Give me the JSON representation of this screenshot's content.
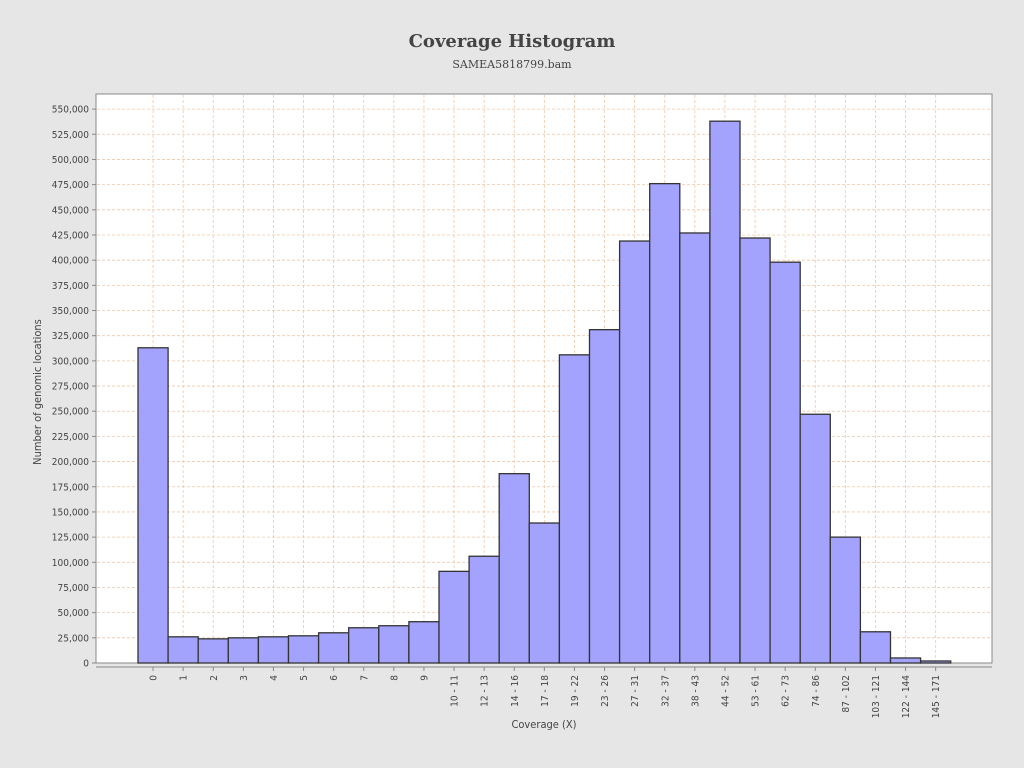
{
  "chart_data": {
    "type": "bar",
    "title": "Coverage Histogram",
    "subtitle": "SAMEA5818799.bam",
    "xlabel": "Coverage (X)",
    "ylabel": "Number of genomic locations",
    "ylim": [
      0,
      565000
    ],
    "ytick_step": 25000,
    "grid": true,
    "categories": [
      "0",
      "1",
      "2",
      "3",
      "4",
      "5",
      "6",
      "7",
      "8",
      "9",
      "10 - 11",
      "12 - 13",
      "14 - 16",
      "17 - 18",
      "19 - 22",
      "23 - 26",
      "27 - 31",
      "32 - 37",
      "38 - 43",
      "44 - 52",
      "53 - 61",
      "62 - 73",
      "74 - 86",
      "87 - 102",
      "103 - 121",
      "122 - 144",
      "145 - 171"
    ],
    "values": [
      313000,
      26000,
      24000,
      25000,
      26000,
      27000,
      30000,
      35000,
      37000,
      41000,
      91000,
      106000,
      188000,
      139000,
      306000,
      331000,
      419000,
      476000,
      427000,
      538000,
      422000,
      398000,
      247000,
      125000,
      31000,
      5000,
      2000
    ],
    "colors": {
      "bar_fill": "#a3a3fd",
      "bar_stroke": "#333333",
      "grid": "#f0c8a8",
      "plot_bg": "#ffffff",
      "axis": "#888888"
    }
  }
}
